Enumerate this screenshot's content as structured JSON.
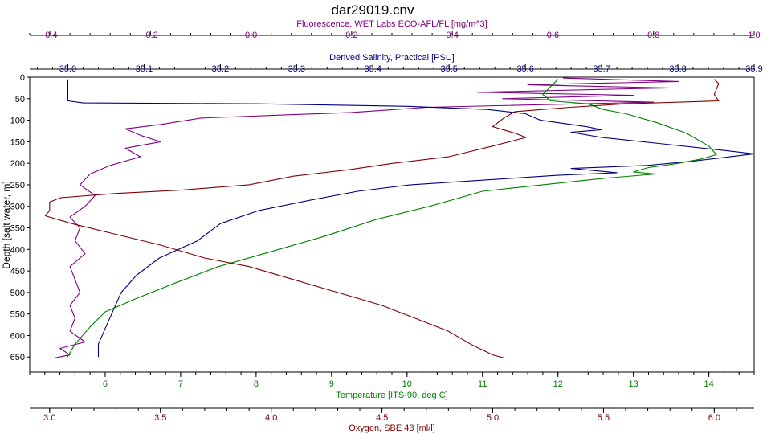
{
  "chart_data": {
    "type": "line",
    "title": "dar29019.cnv",
    "y_axis": {
      "label": "Depth [salt water, m]",
      "ticks": [
        0,
        50,
        100,
        150,
        200,
        250,
        300,
        350,
        400,
        450,
        500,
        550,
        600,
        650
      ],
      "range": [
        0,
        685
      ],
      "inverted": true,
      "color": "#000000"
    },
    "grid": false,
    "x_axes": [
      {
        "key": "fluorescence",
        "label": "Fluorescence, WET Labs ECO-AFL/FL [mg/m^3]",
        "position": "top-outer",
        "color": "#800080",
        "range": [
          -0.44,
          1.0
        ],
        "ticks": [
          -0.4,
          -0.2,
          0.0,
          0.2,
          0.4,
          0.6,
          0.8,
          1.0
        ],
        "tick_labels": [
          "-0.4",
          "-0.2",
          "0.0",
          "0.2",
          "0.4",
          "0.6",
          "0.8",
          "1.0"
        ]
      },
      {
        "key": "salinity",
        "label": "Derived Salinity, Practical [PSU]",
        "position": "top-inner",
        "color": "#000080",
        "range": [
          34.95,
          35.9
        ],
        "ticks": [
          35.0,
          35.1,
          35.2,
          35.3,
          35.4,
          35.5,
          35.6,
          35.7,
          35.8,
          35.9
        ],
        "tick_labels": [
          "35.0",
          "35.1",
          "35.2",
          "35.3",
          "35.4",
          "35.5",
          "35.6",
          "35.7",
          "35.8",
          "35.9"
        ]
      },
      {
        "key": "temperature",
        "label": "Temperature [ITS-90, deg C]",
        "position": "bottom-inner",
        "color": "#008000",
        "range": [
          5.0,
          14.6
        ],
        "ticks": [
          6,
          7,
          8,
          9,
          10,
          11,
          12,
          13,
          14
        ],
        "tick_labels": [
          "6",
          "7",
          "8",
          "9",
          "10",
          "11",
          "12",
          "13",
          "14"
        ]
      },
      {
        "key": "oxygen",
        "label": "Oxygen, SBE 43 [ml/l]",
        "position": "bottom-outer",
        "color": "#800000",
        "range": [
          2.91,
          6.18
        ],
        "ticks": [
          3.0,
          3.5,
          4.0,
          4.5,
          5.0,
          5.5,
          6.0
        ],
        "tick_labels": [
          "3.0",
          "3.5",
          "4.0",
          "4.5",
          "5.0",
          "5.5",
          "6.0"
        ]
      }
    ],
    "series": [
      {
        "axis": "fluorescence",
        "color": "#800080",
        "points": [
          [
            0.62,
            2
          ],
          [
            0.85,
            10
          ],
          [
            0.55,
            18
          ],
          [
            0.83,
            25
          ],
          [
            0.45,
            35
          ],
          [
            0.76,
            42
          ],
          [
            0.5,
            50
          ],
          [
            0.8,
            58
          ],
          [
            0.35,
            70
          ],
          [
            0.2,
            82
          ],
          [
            -0.1,
            95
          ],
          [
            -0.18,
            110
          ],
          [
            -0.25,
            120
          ],
          [
            -0.22,
            135
          ],
          [
            -0.18,
            150
          ],
          [
            -0.25,
            165
          ],
          [
            -0.22,
            185
          ],
          [
            -0.28,
            205
          ],
          [
            -0.32,
            225
          ],
          [
            -0.34,
            250
          ],
          [
            -0.31,
            275
          ],
          [
            -0.33,
            300
          ],
          [
            -0.36,
            325
          ],
          [
            -0.34,
            350
          ],
          [
            -0.35,
            380
          ],
          [
            -0.33,
            410
          ],
          [
            -0.36,
            440
          ],
          [
            -0.35,
            470
          ],
          [
            -0.34,
            500
          ],
          [
            -0.36,
            530
          ],
          [
            -0.35,
            560
          ],
          [
            -0.36,
            590
          ],
          [
            -0.33,
            615
          ],
          [
            -0.38,
            630
          ],
          [
            -0.36,
            645
          ],
          [
            -0.39,
            652
          ]
        ]
      },
      {
        "axis": "salinity",
        "color": "#000080",
        "points": [
          [
            35.0,
            5
          ],
          [
            35.0,
            55
          ],
          [
            35.02,
            60
          ],
          [
            35.25,
            62
          ],
          [
            35.45,
            68
          ],
          [
            35.55,
            75
          ],
          [
            35.6,
            85
          ],
          [
            35.62,
            100
          ],
          [
            35.68,
            115
          ],
          [
            35.7,
            122
          ],
          [
            35.66,
            128
          ],
          [
            35.7,
            140
          ],
          [
            35.78,
            155
          ],
          [
            35.86,
            170
          ],
          [
            35.9,
            178
          ],
          [
            35.82,
            195
          ],
          [
            35.76,
            205
          ],
          [
            35.66,
            212
          ],
          [
            35.72,
            222
          ],
          [
            35.64,
            228
          ],
          [
            35.58,
            235
          ],
          [
            35.45,
            250
          ],
          [
            35.38,
            265
          ],
          [
            35.32,
            285
          ],
          [
            35.25,
            310
          ],
          [
            35.2,
            340
          ],
          [
            35.17,
            380
          ],
          [
            35.12,
            420
          ],
          [
            35.09,
            460
          ],
          [
            35.07,
            500
          ],
          [
            35.06,
            540
          ],
          [
            35.05,
            580
          ],
          [
            35.04,
            620
          ],
          [
            35.04,
            650
          ]
        ]
      },
      {
        "axis": "temperature",
        "color": "#008000",
        "points": [
          [
            12.0,
            5
          ],
          [
            11.8,
            40
          ],
          [
            11.9,
            55
          ],
          [
            12.4,
            62
          ],
          [
            12.6,
            75
          ],
          [
            12.9,
            85
          ],
          [
            13.3,
            105
          ],
          [
            13.7,
            130
          ],
          [
            14.0,
            160
          ],
          [
            14.1,
            180
          ],
          [
            13.9,
            190
          ],
          [
            13.6,
            200
          ],
          [
            13.2,
            210
          ],
          [
            13.0,
            220
          ],
          [
            13.3,
            225
          ],
          [
            12.6,
            235
          ],
          [
            11.8,
            250
          ],
          [
            11.0,
            265
          ],
          [
            10.3,
            300
          ],
          [
            9.6,
            330
          ],
          [
            8.9,
            370
          ],
          [
            8.1,
            410
          ],
          [
            7.5,
            440
          ],
          [
            6.9,
            480
          ],
          [
            6.4,
            515
          ],
          [
            6.0,
            545
          ],
          [
            5.8,
            580
          ],
          [
            5.6,
            620
          ],
          [
            5.5,
            650
          ]
        ]
      },
      {
        "axis": "oxygen",
        "color": "#800000",
        "points": [
          [
            6.0,
            5
          ],
          [
            6.02,
            15
          ],
          [
            6.0,
            40
          ],
          [
            6.02,
            55
          ],
          [
            5.6,
            62
          ],
          [
            5.35,
            70
          ],
          [
            5.1,
            80
          ],
          [
            5.05,
            95
          ],
          [
            5.0,
            115
          ],
          [
            5.1,
            130
          ],
          [
            5.15,
            140
          ],
          [
            5.0,
            160
          ],
          [
            4.8,
            185
          ],
          [
            4.55,
            200
          ],
          [
            4.35,
            215
          ],
          [
            4.1,
            230
          ],
          [
            3.9,
            250
          ],
          [
            3.6,
            262
          ],
          [
            3.3,
            270
          ],
          [
            3.05,
            280
          ],
          [
            3.0,
            290
          ],
          [
            3.0,
            310
          ],
          [
            2.98,
            322
          ],
          [
            3.1,
            340
          ],
          [
            3.3,
            365
          ],
          [
            3.5,
            390
          ],
          [
            3.7,
            420
          ],
          [
            3.9,
            440
          ],
          [
            4.1,
            470
          ],
          [
            4.3,
            500
          ],
          [
            4.5,
            530
          ],
          [
            4.65,
            560
          ],
          [
            4.8,
            590
          ],
          [
            4.9,
            620
          ],
          [
            5.0,
            645
          ],
          [
            5.05,
            652
          ]
        ]
      }
    ]
  }
}
